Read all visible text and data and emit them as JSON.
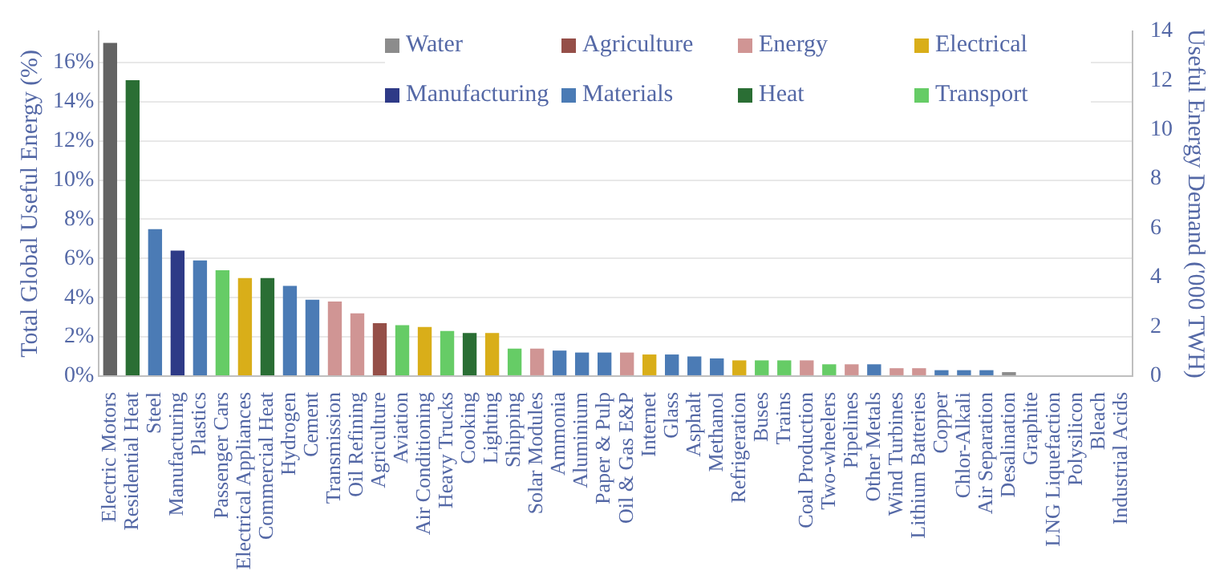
{
  "chart_data": {
    "type": "bar",
    "stacked": true,
    "ylabel": "Total Global Useful Energy (%)",
    "y2label": "Useful Energy Demand ('000 TWH)",
    "categories": [
      "Electric Motors",
      "Residential Heat",
      "Steel",
      "Manufacturing",
      "Plastics",
      "Passenger Cars",
      "Electrical Appliances",
      "Commercial Heat",
      "Hydrogen",
      "Cement",
      "Transmission",
      "Oil Refining",
      "Agriculture",
      "Aviation",
      "Air Conditioning",
      "Heavy Trucks",
      "Cooking",
      "Lighting",
      "Shipping",
      "Solar Modules",
      "Ammonia",
      "Aluminium",
      "Paper & Pulp",
      "Oil & Gas E&P",
      "Internet",
      "Glass",
      "Asphalt",
      "Methanol",
      "Refrigeration",
      "Buses",
      "Trains",
      "Coal Production",
      "Two-wheelers",
      "Pipelines",
      "Other Metals",
      "Wind Turbines",
      "Lithium Batteries",
      "Copper",
      "Chlor-Alkali",
      "Air Separation",
      "Desalination",
      "Graphite",
      "LNG Liquefaction",
      "Polysilicon",
      "Bleach",
      "Industrial Acids"
    ],
    "series": [
      {
        "color": "#636363",
        "values": [
          17.0,
          null,
          null,
          null,
          null,
          null,
          null,
          null,
          null,
          null,
          null,
          null,
          null,
          null,
          null,
          null,
          null,
          null,
          null,
          null,
          null,
          null,
          null,
          null,
          null,
          null,
          null,
          null,
          null,
          null,
          null,
          null,
          null,
          null,
          null,
          null,
          null,
          null,
          null,
          null,
          null,
          null,
          null,
          null,
          null,
          null
        ]
      },
      {
        "name": "Water",
        "color": "#8c8c8c",
        "values": [
          null,
          null,
          null,
          null,
          null,
          null,
          null,
          null,
          null,
          null,
          null,
          null,
          null,
          null,
          null,
          null,
          null,
          null,
          null,
          null,
          null,
          null,
          null,
          null,
          null,
          null,
          null,
          null,
          null,
          null,
          null,
          null,
          null,
          null,
          null,
          null,
          null,
          null,
          null,
          null,
          0.2,
          null,
          null,
          null,
          null,
          null
        ]
      },
      {
        "name": "Agriculture",
        "color": "#954f48",
        "values": [
          null,
          null,
          null,
          null,
          null,
          null,
          null,
          null,
          null,
          null,
          null,
          null,
          2.7,
          null,
          null,
          null,
          null,
          null,
          null,
          null,
          null,
          null,
          null,
          null,
          null,
          null,
          null,
          null,
          null,
          null,
          null,
          null,
          null,
          null,
          null,
          null,
          null,
          null,
          null,
          null,
          null,
          null,
          null,
          null,
          null,
          null
        ]
      },
      {
        "name": "Energy",
        "color": "#d09594",
        "values": [
          null,
          null,
          null,
          null,
          null,
          null,
          null,
          null,
          null,
          null,
          3.8,
          3.2,
          null,
          null,
          null,
          null,
          null,
          null,
          null,
          1.4,
          null,
          null,
          null,
          1.2,
          null,
          null,
          null,
          null,
          null,
          null,
          null,
          0.8,
          null,
          0.6,
          null,
          0.4,
          0.4,
          null,
          null,
          null,
          null,
          null,
          0,
          0,
          null,
          null
        ]
      },
      {
        "name": "Electrical",
        "color": "#d9ae19",
        "values": [
          null,
          null,
          null,
          null,
          null,
          null,
          5.0,
          null,
          null,
          null,
          null,
          null,
          null,
          null,
          2.5,
          null,
          null,
          2.2,
          null,
          null,
          null,
          null,
          null,
          null,
          1.1,
          null,
          null,
          null,
          0.8,
          null,
          null,
          null,
          null,
          null,
          null,
          null,
          null,
          null,
          null,
          null,
          null,
          null,
          null,
          null,
          null,
          null
        ]
      },
      {
        "name": "Manufacturing",
        "color": "#2e3a87",
        "values": [
          null,
          null,
          null,
          6.4,
          null,
          null,
          null,
          null,
          null,
          null,
          null,
          null,
          null,
          null,
          null,
          null,
          null,
          null,
          null,
          null,
          null,
          null,
          null,
          null,
          null,
          null,
          null,
          null,
          null,
          null,
          null,
          null,
          null,
          null,
          null,
          null,
          null,
          null,
          null,
          null,
          null,
          null,
          null,
          null,
          null,
          null
        ]
      },
      {
        "name": "Materials",
        "color": "#4b7bb5",
        "values": [
          null,
          null,
          7.5,
          null,
          5.9,
          null,
          null,
          null,
          4.6,
          3.9,
          null,
          null,
          null,
          null,
          null,
          null,
          null,
          null,
          null,
          null,
          1.3,
          1.2,
          1.2,
          null,
          null,
          1.1,
          1.0,
          0.9,
          null,
          null,
          null,
          null,
          null,
          null,
          0.6,
          null,
          null,
          0.3,
          0.3,
          0.3,
          null,
          0,
          null,
          null,
          0,
          0
        ]
      },
      {
        "name": "Heat",
        "color": "#2a6e34",
        "values": [
          null,
          15.1,
          null,
          null,
          null,
          null,
          null,
          5.0,
          null,
          null,
          null,
          null,
          null,
          null,
          null,
          null,
          2.2,
          null,
          null,
          null,
          null,
          null,
          null,
          null,
          null,
          null,
          null,
          null,
          null,
          null,
          null,
          null,
          null,
          null,
          null,
          null,
          null,
          null,
          null,
          null,
          null,
          null,
          null,
          null,
          null,
          null
        ]
      },
      {
        "name": "Transport",
        "color": "#66cc66",
        "values": [
          null,
          null,
          null,
          null,
          null,
          5.4,
          null,
          null,
          null,
          null,
          null,
          null,
          null,
          2.6,
          null,
          2.3,
          null,
          null,
          1.4,
          null,
          null,
          null,
          null,
          null,
          null,
          null,
          null,
          null,
          null,
          0.8,
          0.8,
          null,
          0.6,
          null,
          null,
          null,
          null,
          null,
          null,
          null,
          null,
          null,
          null,
          null,
          null,
          null
        ]
      }
    ],
    "ylim": [
      0,
      17.6
    ],
    "yticks": [
      {
        "value": 0,
        "label": "0%"
      },
      {
        "value": 2,
        "label": "2%"
      },
      {
        "value": 4,
        "label": "4%"
      },
      {
        "value": 6,
        "label": "6%"
      },
      {
        "value": 8,
        "label": "8%"
      },
      {
        "value": 10,
        "label": "10%"
      },
      {
        "value": 12,
        "label": "12%"
      },
      {
        "value": 14,
        "label": "14%"
      },
      {
        "value": 16,
        "label": "16%"
      }
    ],
    "y2lim": [
      0,
      14
    ],
    "y2ticks": [
      0,
      2,
      4,
      6,
      8,
      10,
      12,
      14
    ],
    "grid": "y",
    "legend": "top right"
  }
}
